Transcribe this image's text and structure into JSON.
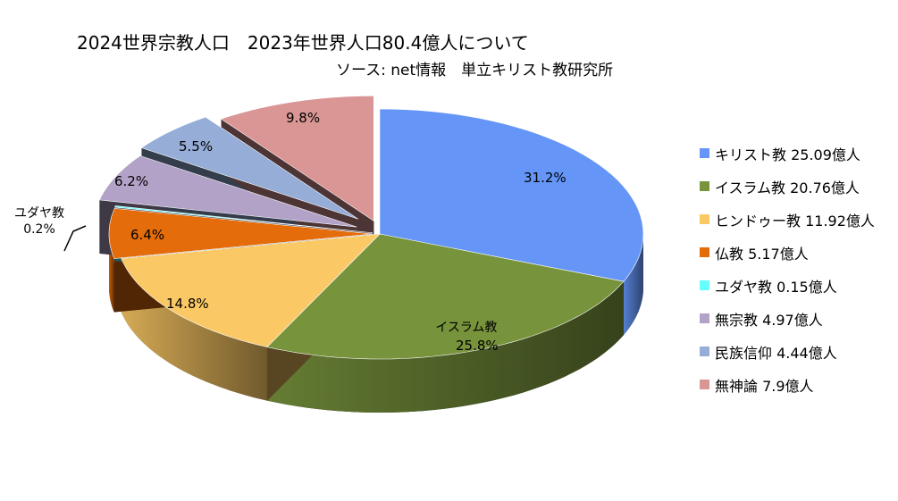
{
  "chart_data": {
    "type": "pie",
    "title": "2024世界宗教人口　2023年世界人口80.4億人について",
    "subtitle": "ソース: net情報　単立キリスト教研究所",
    "slices": [
      {
        "name": "キリスト教",
        "legend": "キリスト教 25.09億人",
        "value": 25.09,
        "percent_label": "31.2%",
        "color": "#6495F7"
      },
      {
        "name": "イスラム教",
        "legend": "イスラム教 20.76億人",
        "value": 20.76,
        "percent_label": "25.8%",
        "color": "#77933C"
      },
      {
        "name": "ヒンドゥー教",
        "legend": "ヒンドゥー教 11.92億人",
        "value": 11.92,
        "percent_label": "14.8%",
        "color": "#FAC864"
      },
      {
        "name": "仏教",
        "legend": "仏教 5.17億人",
        "value": 5.17,
        "percent_label": "6.4%",
        "color": "#E46C0A"
      },
      {
        "name": "ユダヤ教",
        "legend": "ユダヤ教 0.15億人",
        "value": 0.15,
        "percent_label": "0.2%",
        "color": "#66FFFF"
      },
      {
        "name": "無宗教",
        "legend": "無宗教 4.97億人",
        "value": 4.97,
        "percent_label": "6.2%",
        "color": "#B3A2C7"
      },
      {
        "name": "民族信仰",
        "legend": "民族信仰 4.44億人",
        "value": 4.44,
        "percent_label": "5.5%",
        "color": "#95ADD7"
      },
      {
        "name": "無神論",
        "legend": "無神論 7.9億人",
        "value": 7.9,
        "percent_label": "9.8%",
        "color": "#D99694"
      }
    ],
    "legend_position": "right"
  }
}
